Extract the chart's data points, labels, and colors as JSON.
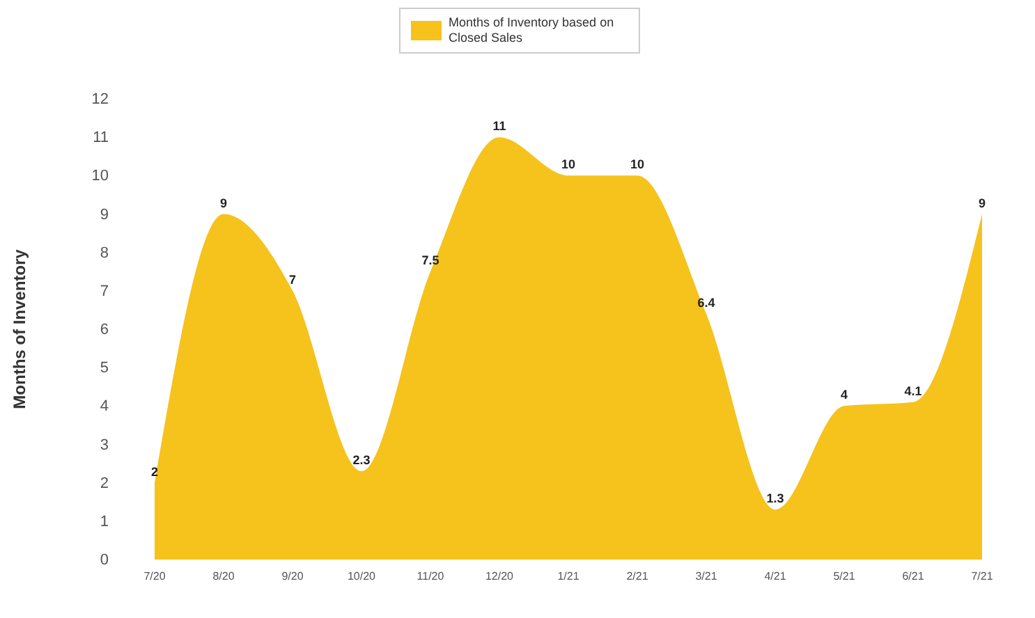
{
  "chart_data": {
    "type": "area",
    "ylabel": "Months of Inventory",
    "categories": [
      "7/20",
      "8/20",
      "9/20",
      "10/20",
      "11/20",
      "12/20",
      "1/21",
      "2/21",
      "3/21",
      "4/21",
      "5/21",
      "6/21",
      "7/21"
    ],
    "series": [
      {
        "name": "Months of Inventory based on Closed Sales",
        "color": "#f6c21c",
        "values": [
          2,
          9,
          7,
          2.3,
          7.5,
          11,
          10,
          10,
          6.4,
          1.3,
          4,
          4.1,
          9
        ]
      }
    ],
    "ylim": [
      0,
      12
    ],
    "yticks": [
      0,
      1,
      2,
      3,
      4,
      5,
      6,
      7,
      8,
      9,
      10,
      11,
      12
    ],
    "grid": false,
    "legend": "top",
    "data_labels": true
  }
}
